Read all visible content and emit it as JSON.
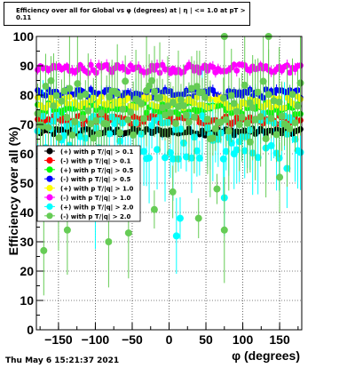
{
  "title": "Efficiency over all for Global vs φ (degrees) at | η | <= 1.0 at pT > 0.11",
  "footer": "Thu May  6 15:21:37 2021",
  "chart_data": {
    "type": "scatter",
    "title": "Efficiency over all for Global vs φ (degrees) at | η | <= 1.0 at pT > 0.11",
    "xlabel": "φ (degrees)",
    "ylabel": "Efficiency over all (%)",
    "xlim": [
      -180,
      180
    ],
    "ylim": [
      0,
      100
    ],
    "x_ticks": [
      -150,
      -100,
      -50,
      0,
      50,
      100,
      150
    ],
    "y_ticks": [
      0,
      10,
      20,
      30,
      40,
      50,
      60,
      70,
      80,
      90,
      100
    ],
    "grid": true,
    "legend_position": "left-middle",
    "n_bins": 100,
    "series": [
      {
        "name": "(+) with p T/|q| > 0.1",
        "color": "#000000",
        "base": 67.5,
        "spread": 1.2,
        "err": 1.2,
        "extra": []
      },
      {
        "name": "(-) with p T/|q| > 0.1",
        "color": "#ff0000",
        "base": 71.5,
        "spread": 1.5,
        "err": 1.4,
        "extra": []
      },
      {
        "name": "(+) with p T/|q| > 0.5",
        "color": "#00ff00",
        "base": 75.5,
        "spread": 2.0,
        "err": 2.0,
        "extra": []
      },
      {
        "name": "(-) with p T/|q| > 0.5",
        "color": "#0000ff",
        "base": 80.5,
        "spread": 1.5,
        "err": 1.5,
        "extra": []
      },
      {
        "name": "(+) with p T/|q| > 1.0",
        "color": "#ffff00",
        "base": 77.5,
        "spread": 2.0,
        "err": 2.0,
        "extra": []
      },
      {
        "name": "(-) with p T/|q| > 1.0",
        "color": "#ff00ff",
        "base": 89.0,
        "spread": 1.5,
        "err": 1.5,
        "extra": []
      },
      {
        "name": "(+) with p T/|q| > 2.0",
        "color": "#00ffff",
        "base": 66.0,
        "spread": 8.0,
        "err": 6.0,
        "extra": [
          [
            10,
            32
          ],
          [
            15,
            38
          ],
          [
            75,
            45
          ],
          [
            -100,
            40
          ],
          [
            160,
            55
          ]
        ]
      },
      {
        "name": "(-) with p T/|q| > 2.0",
        "color": "#66cc55",
        "base": 75.0,
        "spread": 10.0,
        "err": 8.0,
        "extra": [
          [
            -170,
            27
          ],
          [
            -138,
            34
          ],
          [
            -82,
            30
          ],
          [
            -55,
            33
          ],
          [
            -20,
            41
          ],
          [
            5,
            47
          ],
          [
            40,
            38
          ],
          [
            75,
            34
          ],
          [
            75,
            100
          ],
          [
            135,
            100
          ],
          [
            -150,
            47
          ],
          [
            110,
            64
          ],
          [
            150,
            52
          ],
          [
            -115,
            58
          ],
          [
            65,
            48
          ]
        ]
      }
    ]
  }
}
